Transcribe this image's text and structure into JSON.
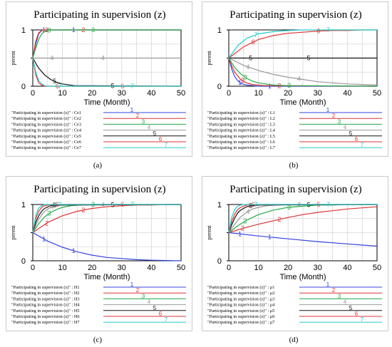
{
  "figure": {
    "panel_labels": [
      "(a)",
      "(b)",
      "(c)",
      "(d)"
    ]
  },
  "chart_data": [
    {
      "type": "line",
      "title": "Participating in supervision (z)",
      "xlabel": "Time (Month)",
      "ylabel": "perent",
      "xlim": [
        0,
        50
      ],
      "ylim": [
        0,
        1
      ],
      "xticks": [
        "0",
        "10",
        "20",
        "30",
        "40",
        "50"
      ],
      "yticks": [
        "0",
        "0.5",
        "1"
      ],
      "grid": true,
      "legend_prefix": "\"Participating in supervision (z)\" : ",
      "series": [
        {
          "name": "Ce1",
          "marker": "1",
          "color": "#3344dd",
          "x": [
            0,
            1,
            2,
            3,
            4,
            5,
            50
          ],
          "y": [
            0.5,
            0.75,
            0.93,
            0.99,
            1,
            1,
            1
          ]
        },
        {
          "name": "Ce2",
          "marker": "2",
          "color": "#dd3333",
          "x": [
            0,
            1,
            2,
            3,
            4,
            50
          ],
          "y": [
            0.5,
            0.8,
            0.95,
            0.99,
            1,
            1
          ]
        },
        {
          "name": "Ce3",
          "marker": "3",
          "color": "#22aa44",
          "x": [
            0,
            1,
            2,
            3,
            4,
            5,
            6,
            50
          ],
          "y": [
            0.5,
            0.68,
            0.83,
            0.93,
            0.97,
            0.99,
            1,
            1
          ]
        },
        {
          "name": "Ce4",
          "marker": "4",
          "color": "#999999",
          "x": [
            0,
            50
          ],
          "y": [
            0.5,
            0.5
          ]
        },
        {
          "name": "Ce5",
          "marker": "5",
          "color": "#111111",
          "x": [
            0,
            2,
            4,
            6,
            8,
            10,
            14,
            50
          ],
          "y": [
            0.5,
            0.32,
            0.2,
            0.12,
            0.07,
            0.04,
            0.01,
            0
          ]
        },
        {
          "name": "Ce6",
          "marker": "6",
          "color": "#dd3333",
          "x": [
            0,
            1,
            2,
            3,
            4,
            50
          ],
          "y": [
            0.5,
            0.2,
            0.06,
            0.02,
            0,
            0
          ]
        },
        {
          "name": "Ce7",
          "marker": "7",
          "color": "#22cccc",
          "x": [
            0,
            1,
            2,
            3,
            4,
            5,
            50
          ],
          "y": [
            0.5,
            0.25,
            0.1,
            0.04,
            0.01,
            0,
            0
          ]
        }
      ]
    },
    {
      "type": "line",
      "title": "Participating in supervision (z)",
      "xlabel": "Time (Month)",
      "ylabel": "perent",
      "xlim": [
        0,
        50
      ],
      "ylim": [
        0,
        1
      ],
      "xticks": [
        "0",
        "10",
        "20",
        "30",
        "40",
        "50"
      ],
      "yticks": [
        "0",
        "0.5",
        "1"
      ],
      "grid": true,
      "legend_prefix": "\"Participating in supervision (z)\" : ",
      "series": [
        {
          "name": "L1",
          "marker": "1",
          "color": "#3344dd",
          "x": [
            0,
            1,
            2,
            3,
            4,
            6,
            8,
            10,
            50
          ],
          "y": [
            0.5,
            0.3,
            0.17,
            0.1,
            0.05,
            0.02,
            0.01,
            0,
            0
          ]
        },
        {
          "name": "L2",
          "marker": "2",
          "color": "#dd3333",
          "x": [
            0,
            1,
            2,
            4,
            6,
            8,
            12,
            50
          ],
          "y": [
            0.5,
            0.36,
            0.25,
            0.12,
            0.06,
            0.03,
            0.01,
            0
          ]
        },
        {
          "name": "L3",
          "marker": "3",
          "color": "#22aa44",
          "x": [
            0,
            2,
            4,
            6,
            8,
            10,
            15,
            20,
            50
          ],
          "y": [
            0.5,
            0.33,
            0.22,
            0.14,
            0.09,
            0.06,
            0.02,
            0.01,
            0
          ]
        },
        {
          "name": "L4",
          "marker": "4",
          "color": "#999999",
          "x": [
            0,
            5,
            10,
            15,
            20,
            25,
            30,
            35,
            40,
            50
          ],
          "y": [
            0.5,
            0.37,
            0.28,
            0.21,
            0.16,
            0.12,
            0.08,
            0.06,
            0.04,
            0.02
          ]
        },
        {
          "name": "L5",
          "marker": "5",
          "color": "#111111",
          "x": [
            0,
            50
          ],
          "y": [
            0.5,
            0.5
          ]
        },
        {
          "name": "L6",
          "marker": "6",
          "color": "#dd3333",
          "x": [
            0,
            5,
            10,
            15,
            20,
            25,
            30,
            35,
            40,
            45,
            50
          ],
          "y": [
            0.5,
            0.7,
            0.83,
            0.9,
            0.94,
            0.96,
            0.98,
            0.99,
            0.99,
            1,
            1
          ]
        },
        {
          "name": "L7",
          "marker": "7",
          "color": "#22cccc",
          "x": [
            0,
            3,
            6,
            10,
            15,
            20,
            25,
            30,
            35,
            50
          ],
          "y": [
            0.5,
            0.72,
            0.85,
            0.93,
            0.97,
            0.99,
            1,
            1,
            1,
            1
          ]
        }
      ]
    },
    {
      "type": "line",
      "title": "Participating in supervision (z)",
      "xlabel": "Time (Month)",
      "ylabel": "perent",
      "xlim": [
        0,
        50
      ],
      "ylim": [
        0,
        1
      ],
      "xticks": [
        "0",
        "10",
        "20",
        "30",
        "40",
        "50"
      ],
      "yticks": [
        "0",
        "0.5",
        "1"
      ],
      "grid": true,
      "legend_prefix": "\"Participating in supervision (z)\" : ",
      "series": [
        {
          "name": "H1",
          "marker": "1",
          "color": "#3344dd",
          "x": [
            0,
            5,
            10,
            15,
            20,
            25,
            30,
            35,
            40,
            45,
            50
          ],
          "y": [
            0.5,
            0.35,
            0.24,
            0.16,
            0.1,
            0.06,
            0.04,
            0.02,
            0.01,
            0.005,
            0
          ]
        },
        {
          "name": "H2",
          "marker": "2",
          "color": "#dd3333",
          "x": [
            0,
            5,
            10,
            15,
            20,
            25,
            30,
            35,
            40,
            45,
            50
          ],
          "y": [
            0.5,
            0.68,
            0.8,
            0.88,
            0.93,
            0.96,
            0.98,
            0.99,
            0.99,
            1,
            1
          ]
        },
        {
          "name": "H3",
          "marker": "3",
          "color": "#22aa44",
          "x": [
            0,
            2,
            4,
            6,
            8,
            10,
            13,
            16,
            20,
            50
          ],
          "y": [
            0.5,
            0.66,
            0.78,
            0.86,
            0.91,
            0.95,
            0.98,
            0.99,
            1,
            1
          ]
        },
        {
          "name": "H4",
          "marker": "4",
          "color": "#999999",
          "x": [
            0,
            1,
            2,
            4,
            6,
            8,
            10,
            50
          ],
          "y": [
            0.5,
            0.63,
            0.74,
            0.88,
            0.95,
            0.98,
            0.99,
            1
          ]
        },
        {
          "name": "H5",
          "marker": "5",
          "color": "#111111",
          "x": [
            0,
            1,
            2,
            3,
            4,
            6,
            8,
            50
          ],
          "y": [
            0.5,
            0.68,
            0.8,
            0.88,
            0.93,
            0.98,
            0.99,
            1
          ]
        },
        {
          "name": "H6",
          "marker": "6",
          "color": "#dd3333",
          "x": [
            0,
            1,
            2,
            3,
            4,
            6,
            50
          ],
          "y": [
            0.5,
            0.75,
            0.88,
            0.95,
            0.98,
            1,
            1
          ]
        },
        {
          "name": "H7",
          "marker": "7",
          "color": "#22cccc",
          "x": [
            0,
            1,
            2,
            3,
            4,
            50
          ],
          "y": [
            0.5,
            0.8,
            0.94,
            0.98,
            1,
            1
          ]
        }
      ]
    },
    {
      "type": "line",
      "title": "Participating in supervision (z)",
      "xlabel": "Time (Month)",
      "ylabel": "perent",
      "xlim": [
        0,
        50
      ],
      "ylim": [
        0,
        1
      ],
      "xticks": [
        "0",
        "10",
        "20",
        "30",
        "40",
        "50"
      ],
      "yticks": [
        "0",
        "0.5",
        "1"
      ],
      "grid": true,
      "legend_prefix": "\"Participating in supervision (z)\" : ",
      "series": [
        {
          "name": "μ1",
          "marker": "1",
          "color": "#3344dd",
          "x": [
            0,
            10,
            20,
            30,
            40,
            50
          ],
          "y": [
            0.5,
            0.44,
            0.39,
            0.34,
            0.3,
            0.26
          ]
        },
        {
          "name": "μ2",
          "marker": "2",
          "color": "#dd3333",
          "x": [
            0,
            5,
            10,
            15,
            20,
            25,
            30,
            35,
            40,
            45,
            50
          ],
          "y": [
            0.5,
            0.58,
            0.65,
            0.71,
            0.77,
            0.82,
            0.86,
            0.89,
            0.92,
            0.94,
            0.96
          ]
        },
        {
          "name": "μ3",
          "marker": "3",
          "color": "#22aa44",
          "x": [
            0,
            3,
            6,
            10,
            15,
            20,
            25,
            30,
            35,
            40,
            50
          ],
          "y": [
            0.5,
            0.62,
            0.72,
            0.82,
            0.9,
            0.95,
            0.97,
            0.99,
            0.99,
            1,
            1
          ]
        },
        {
          "name": "μ4",
          "marker": "4",
          "color": "#999999",
          "x": [
            0,
            2,
            4,
            6,
            8,
            10,
            13,
            16,
            20,
            50
          ],
          "y": [
            0.5,
            0.65,
            0.78,
            0.86,
            0.92,
            0.95,
            0.98,
            0.99,
            1,
            1
          ]
        },
        {
          "name": "μ5",
          "marker": "5",
          "color": "#111111",
          "x": [
            0,
            1,
            2,
            3,
            4,
            6,
            8,
            10,
            50
          ],
          "y": [
            0.5,
            0.64,
            0.76,
            0.85,
            0.9,
            0.96,
            0.98,
            0.99,
            1
          ]
        },
        {
          "name": "μ6",
          "marker": "6",
          "color": "#dd3333",
          "x": [
            0,
            1,
            2,
            3,
            4,
            6,
            8,
            50
          ],
          "y": [
            0.5,
            0.7,
            0.83,
            0.91,
            0.95,
            0.99,
            1,
            1
          ]
        },
        {
          "name": "μ7",
          "marker": "7",
          "color": "#22cccc",
          "x": [
            0,
            1,
            2,
            3,
            4,
            5,
            50
          ],
          "y": [
            0.5,
            0.78,
            0.91,
            0.97,
            0.99,
            1,
            1
          ]
        }
      ]
    }
  ]
}
